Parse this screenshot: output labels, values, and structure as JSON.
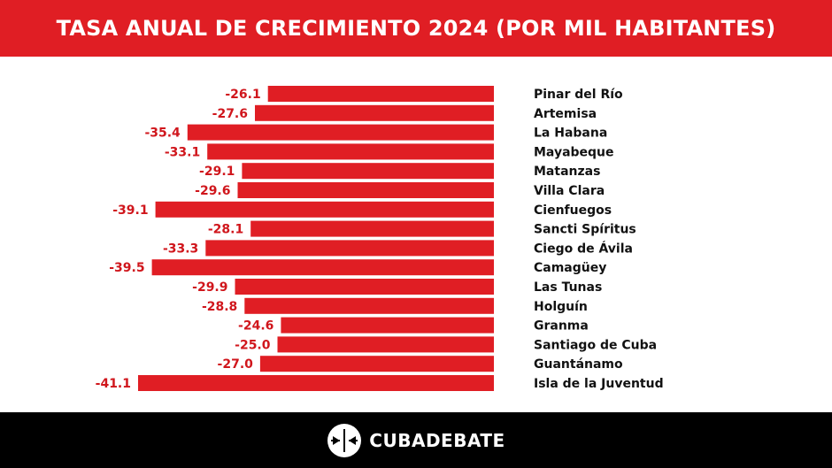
{
  "header": {
    "title": "TASA ANUAL DE CRECIMIENTO 2024 (POR MIL HABITANTES)"
  },
  "colors": {
    "accent": "#e01e24",
    "label": "#d0161c",
    "category": "#111111",
    "footer": "#000000"
  },
  "chart_data": {
    "type": "bar",
    "orientation": "horizontal",
    "title": "TASA ANUAL DE CRECIMIENTO 2024 (POR MIL HABITANTES)",
    "xlabel": "",
    "ylabel": "",
    "xlim": [
      -41.1,
      0
    ],
    "grid": false,
    "legend": "none",
    "categories": [
      "Pinar del Río",
      "Artemisa",
      "La Habana",
      "Mayabeque",
      "Matanzas",
      "Villa Clara",
      "Cienfuegos",
      "Sancti Spíritus",
      "Ciego de Ávila",
      "Camagüey",
      "Las Tunas",
      "Holguín",
      "Granma",
      "Santiago de Cuba",
      "Guantánamo",
      "Isla de la Juventud"
    ],
    "values": [
      -26.1,
      -27.6,
      -35.4,
      -33.1,
      -29.1,
      -29.6,
      -39.1,
      -28.1,
      -33.3,
      -39.5,
      -29.9,
      -28.8,
      -24.6,
      -25.0,
      -27.0,
      -41.1
    ],
    "value_labels": [
      "-26.1",
      "-27.6",
      "-35.4",
      "-33.1",
      "-29.1",
      "-29.6",
      "-39.1",
      "-28.1",
      "-33.3",
      "-39.5",
      "-29.9",
      "-28.8",
      "-24.6",
      "-25.0",
      "-27.0",
      "-41.1"
    ]
  },
  "footer": {
    "brand": "CUBADEBATE",
    "logo_icon": "cubadebate-logo-icon"
  }
}
